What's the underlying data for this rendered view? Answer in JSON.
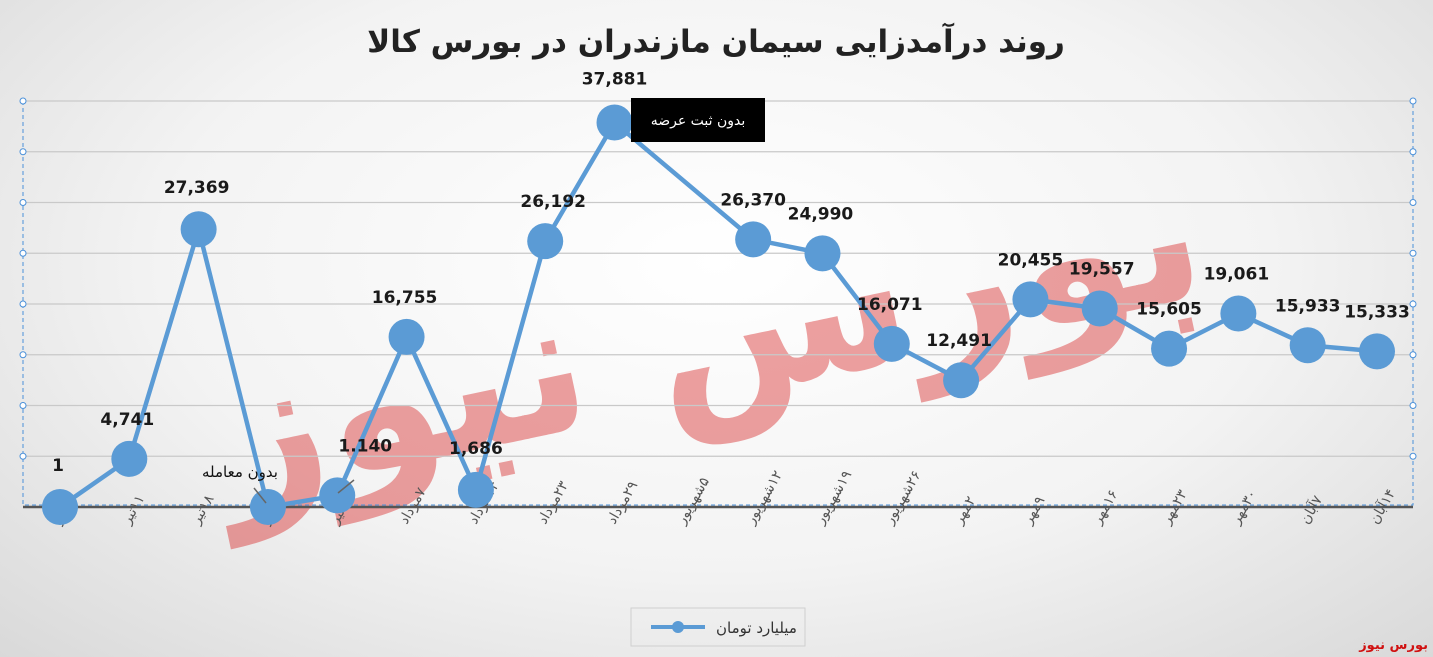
{
  "chart_data": {
    "type": "line",
    "title": "روند درآمدزایی سیمان مازندران در بورس کالا",
    "categories": [
      "۴تیر",
      "۱۱تیر",
      "۱۸تیر",
      "۲۵تیر",
      "۳۱تیر",
      "۷مرداد",
      "۱۴مرداد",
      "۲۳مرداد",
      "۲۹مرداد",
      "۵شهریور",
      "۱۲شهریور",
      "۱۹شهریور",
      "۲۶شهریور",
      "۲مهر",
      "۹مهر",
      "۱۶مهر",
      "۲۳مهر",
      "۳۰مهر",
      "۷آبان",
      "۱۴آبان"
    ],
    "series": [
      {
        "name": "میلیارد تومان",
        "color": "#5b9bd5",
        "values": [
          1,
          4741,
          27369,
          0,
          1140,
          16755,
          1686,
          26192,
          37881,
          null,
          26370,
          24990,
          16071,
          12491,
          20455,
          19557,
          15605,
          19061,
          15933,
          15333
        ],
        "labels": [
          "1",
          "4,741",
          "27,369",
          "",
          "1.140",
          "16,755",
          "1,686",
          "26,192",
          "37,881",
          "",
          "26,370",
          "24,990",
          "16,071",
          "12,491",
          "20,455",
          "19,557",
          "15,605",
          "19,061",
          "15,933",
          "15,333"
        ]
      }
    ],
    "annotations": [
      {
        "text": "بدون معامله",
        "category": "۲۵تیر"
      },
      {
        "text": "بدون ثبت عرضه",
        "category": "۵شهریور"
      }
    ],
    "ylim": [
      0,
      40000
    ],
    "grid": true,
    "legend": "bottom-center"
  },
  "watermark": {
    "text": "بورس نیوز",
    "color": "#d93030"
  },
  "footer": {
    "source": "بورس نیوز"
  }
}
